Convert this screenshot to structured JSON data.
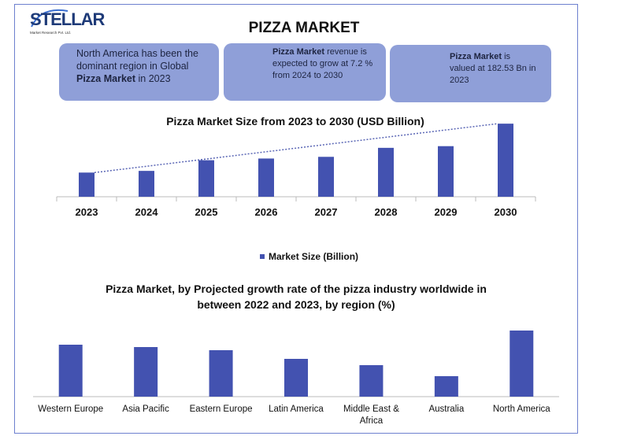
{
  "logo": {
    "name": "STELLAR",
    "tagline": "Market Research Pvt. Ltd."
  },
  "title": "PIZZA MARKET",
  "info_boxes": [
    {
      "before": "North America has been the dominant region in Global",
      "bold": "Pizza Market",
      "after": "in 2023"
    },
    {
      "bold": "Pizza Market",
      "after": "revenue is expected to grow at 7.2 % from 2024 to 2030"
    },
    {
      "bold": "Pizza Market",
      "after": "is valued at 182.53 Bn in 2023"
    }
  ],
  "chart_data": [
    {
      "type": "bar",
      "title": "Pizza Market Size from 2023 to 2030 (USD Billion)",
      "categories": [
        "2023",
        "2024",
        "2025",
        "2026",
        "2027",
        "2028",
        "2029",
        "2030"
      ],
      "series": [
        {
          "name": "Market Size (Billion)",
          "color": "#4352b0",
          "values": [
            183,
            186,
            205,
            208,
            211,
            227,
            230,
            270
          ]
        }
      ],
      "ylim": [
        140,
        280
      ],
      "trend_line": true
    },
    {
      "type": "bar",
      "title": "Pizza Market, by Projected growth rate of the pizza industry worldwide in between 2022 and 2023, by region (%)",
      "categories": [
        "Western Europe",
        "Asia Pacific",
        "Eastern Europe",
        "Latin America",
        "Middle East & Africa",
        "Australia",
        "North America"
      ],
      "values": [
        6.6,
        6.3,
        5.9,
        4.8,
        4.0,
        2.6,
        8.4
      ],
      "color": "#4352b0",
      "ylim": [
        0,
        10
      ]
    }
  ]
}
